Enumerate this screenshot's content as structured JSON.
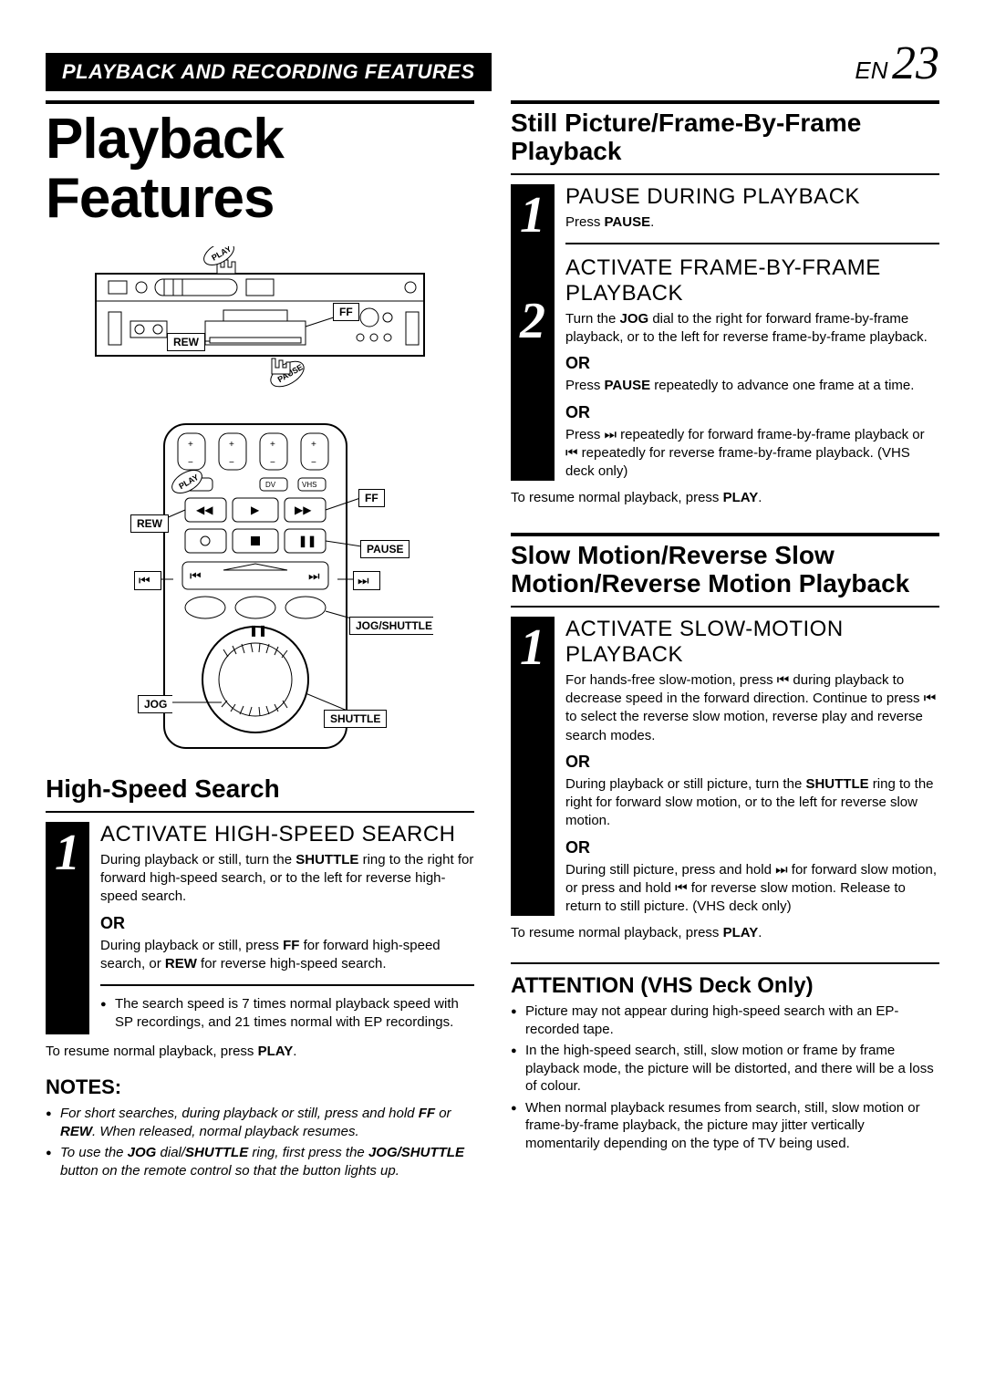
{
  "header": {
    "bar_text": "PLAYBACK AND RECORDING FEATURES",
    "page_prefix": "EN",
    "page_number": "23"
  },
  "left": {
    "main_title_1": "Playback",
    "main_title_2": "Features",
    "vcr_labels": {
      "play": "PLAY",
      "rew": "REW",
      "ff": "FF",
      "pause": "PAUSE"
    },
    "remote_labels": {
      "play": "PLAY",
      "rew": "REW",
      "ff": "FF",
      "pause": "PAUSE",
      "jog_shuttle": "JOG/SHUTTLE",
      "jog": "JOG",
      "shuttle": "SHUTTLE",
      "skip_prev": "⏮",
      "skip_next": "⏭"
    },
    "high_speed": {
      "title": "High-Speed Search",
      "step1_num": "1",
      "step1_title": "ACTIVATE HIGH-SPEED SEARCH",
      "step1_text": "During playback or still, turn the <b>SHUTTLE</b> ring to the right for forward high-speed search, or to the left for reverse high-speed search.",
      "or": "OR",
      "step1_alt": "During playback or still, press <b>FF</b> for forward high-speed search, or <b>REW</b> for reverse high-speed search.",
      "bullet": "The search speed is 7 times normal playback speed with SP recordings, and 21 times normal with EP recordings.",
      "resume": "To resume normal playback, press <b>PLAY</b>."
    },
    "notes": {
      "title": "NOTES:",
      "items": [
        "For short searches, during playback or still, press and hold <b>FF</b> or <b>REW</b>. When released, normal playback resumes.",
        "To use the <b>JOG</b> dial/<b>SHUTTLE</b> ring, first press the <b>JOG/SHUTTLE</b> button on the remote control so that the button lights up."
      ]
    }
  },
  "right": {
    "still": {
      "title": "Still Picture/Frame-By-Frame Playback",
      "step1_num": "1",
      "step1_title": "PAUSE DURING PLAYBACK",
      "step1_text": "Press <b>PAUSE</b>.",
      "step2_num": "2",
      "step2_title": "ACTIVATE FRAME-BY-FRAME PLAYBACK",
      "step2_text": "Turn the <b>JOG</b> dial to the right for forward frame-by-frame playback, or to the left for reverse frame-by-frame playback.",
      "or": "OR",
      "step2_alt1": "Press <b>PAUSE</b> repeatedly to advance one frame at a time.",
      "step2_alt2": "Press ⏭ repeatedly for forward frame-by-frame playback or ⏮ repeatedly for reverse frame-by-frame playback. (VHS deck only)",
      "resume": "To resume normal playback, press <b>PLAY</b>."
    },
    "slow": {
      "title": "Slow Motion/Reverse Slow Motion/Reverse Motion Playback",
      "step1_num": "1",
      "step1_title": "ACTIVATE SLOW-MOTION PLAYBACK",
      "step1_text": "For hands-free slow-motion, press ⏮ during playback to decrease speed in the forward direction. Continue to press ⏮ to select the reverse slow motion, reverse play and reverse search modes.",
      "or": "OR",
      "step1_alt1": "During playback or still picture, turn the <b>SHUTTLE</b> ring to the right for forward slow motion, or to the left for reverse slow motion.",
      "step1_alt2": "During still picture, press and hold ⏭ for forward slow motion, or press and hold ⏮ for reverse slow motion. Release to return to still picture. (VHS deck only)",
      "resume": "To resume normal playback, press <b>PLAY</b>."
    },
    "attention": {
      "title": "ATTENTION (VHS Deck Only)",
      "items": [
        "Picture may not appear during high-speed search with an EP-recorded tape.",
        "In the high-speed search, still, slow motion or frame by frame playback mode, the picture will be distorted, and there will be a loss of colour.",
        "When normal playback resumes from search, still, slow motion or frame-by-frame playback, the picture may jitter vertically momentarily depending on the type of TV being used."
      ]
    }
  }
}
